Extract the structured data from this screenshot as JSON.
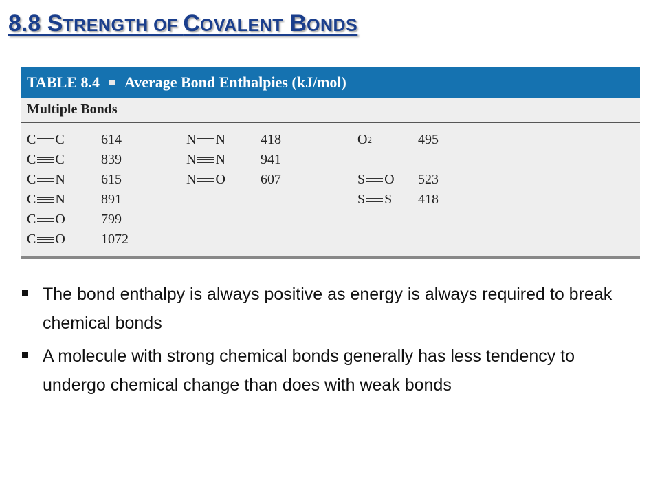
{
  "title": {
    "number": "8.8 ",
    "w1_cap": "S",
    "w1_rest": "TRENGTH",
    "w2": " OF ",
    "w3_cap": "C",
    "w3_rest": "OVALENT",
    "w4_cap": " B",
    "w4_rest": "ONDS"
  },
  "table": {
    "label": "TABLE 8.4",
    "caption": "Average Bond Enthalpies (kJ/mol)",
    "subheader": "Multiple Bonds",
    "col1": [
      {
        "a": "C",
        "bond": "double",
        "b": "C",
        "value": "614"
      },
      {
        "a": "C",
        "bond": "triple",
        "b": "C",
        "value": "839"
      },
      {
        "a": "C",
        "bond": "double",
        "b": "N",
        "value": "615"
      },
      {
        "a": "C",
        "bond": "triple",
        "b": "N",
        "value": "891"
      },
      {
        "a": "C",
        "bond": "double",
        "b": "O",
        "value": "799"
      },
      {
        "a": "C",
        "bond": "triple",
        "b": "O",
        "value": "1072"
      }
    ],
    "col2": [
      {
        "a": "N",
        "bond": "double",
        "b": "N",
        "value": "418"
      },
      {
        "a": "N",
        "bond": "triple",
        "b": "N",
        "value": "941"
      },
      {
        "a": "N",
        "bond": "double",
        "b": "O",
        "value": "607"
      }
    ],
    "col3_o2": {
      "a": "O",
      "sub": "2",
      "value": "495"
    },
    "col3": [
      {
        "a": "S",
        "bond": "double",
        "b": "O",
        "value": "523"
      },
      {
        "a": "S",
        "bond": "double",
        "b": "S",
        "value": "418"
      }
    ]
  },
  "bullets": [
    "The bond enthalpy is always positive as energy is always required to break chemical bonds",
    "A molecule with strong chemical bonds generally has less tendency to undergo chemical change than does with weak bonds"
  ],
  "colors": {
    "title": "#1a3e8c",
    "table_header": "#1572b0",
    "table_bg": "#eeeeee"
  }
}
